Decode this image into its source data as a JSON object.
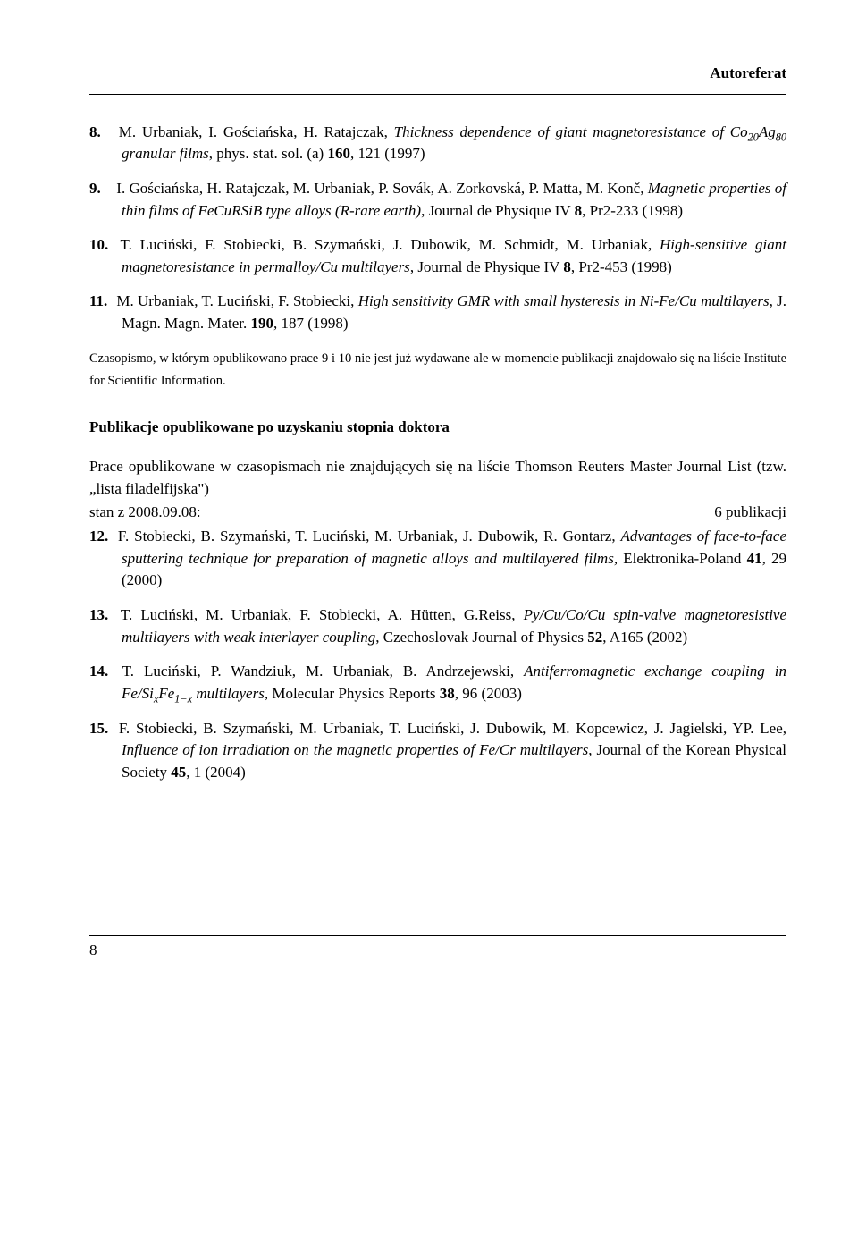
{
  "header": {
    "title": "Autoreferat"
  },
  "refs_a": [
    {
      "num": "8.",
      "html": "M. Urbaniak, I. Gościańska, H. Ratajczak, <span class='italic'>Thickness dependence of giant magnetoresistance of Co<sub>20</sub>Ag<sub>80</sub> granular films</span>, phys. stat. sol. (a) <span class='bold'>160</span>, 121 (1997)"
    },
    {
      "num": "9.",
      "html": "I. Gościańska, H. Ratajczak, M. Urbaniak, P. Sovák, A. Zorkovská, P. Matta, M. Konč, <span class='italic'>Magnetic properties of thin films of FeCuRSiB type alloys (R-rare earth)</span>, Journal de Physique IV <span class='bold'>8</span>, Pr2-233 (1998)"
    },
    {
      "num": "10.",
      "html": "T. Luciński, F. Stobiecki, B. Szymański, J. Dubowik, M. Schmidt, M. Urbaniak, <span class='italic'>High-sensitive giant magnetoresistance in permalloy/Cu multilayers</span>, Journal de Physique IV <span class='bold'>8</span>, Pr2-453 (1998)"
    },
    {
      "num": "11.",
      "html": "M. Urbaniak, T. Luciński, F. Stobiecki, <span class='italic'>High sensitivity GMR with small hysteresis in Ni-Fe/Cu multilayers</span>, J. Magn. Magn. Mater. <span class='bold'>190</span>, 187 (1998)"
    }
  ],
  "note": "Czasopismo, w którym opublikowano prace 9 i 10 nie jest już wydawane ale w momencie publikacji znajdowało się na liście Institute for Scientific Information.",
  "section_b_heading": "Publikacje opublikowane po uzyskaniu stopnia doktora",
  "section_b_intro_1": "Prace opublikowane w czasopismach nie znajdujących się na liście Thomson Reuters Master Journal List (tzw. „lista filadelfijska\")",
  "section_b_intro_2_left": "stan z 2008.09.08:",
  "section_b_intro_2_right": "6 publikacji",
  "refs_b": [
    {
      "num": "12.",
      "html": "F. Stobiecki, B. Szymański, T. Luciński, M. Urbaniak, J. Dubowik, R. Gontarz, <span class='italic'>Advantages of face-to-face sputtering technique for preparation of magnetic alloys and multilayered films</span>, Elektronika-Poland <span class='bold'>41</span>, 29 (2000)"
    },
    {
      "num": "13.",
      "html": "T. Luciński, M. Urbaniak, F. Stobiecki, A. Hütten, G.Reiss, <span class='italic'>Py/Cu/Co/Cu spin-valve magnetoresistive multilayers with weak interlayer coupling</span>, Czechoslovak Journal of Physics <span class='bold'>52</span>, A165 (2002)"
    },
    {
      "num": "14.",
      "html": "T. Luciński, P. Wandziuk, M. Urbaniak, B. Andrzejewski, <span class='italic'>Antiferromagnetic exchange coupling in Fe/Si<sub>x</sub>Fe<sub>1−x</sub> multilayers</span>, Molecular Physics Reports <span class='bold'>38</span>, 96 (2003)"
    },
    {
      "num": "15.",
      "html": "F. Stobiecki, B. Szymański, M. Urbaniak, T. Luciński, J. Dubowik, M. Kopcewicz, J. Jagielski, YP. Lee, <span class='italic'>Influence of ion irradiation on the magnetic properties of Fe/Cr multilayers</span>, Journal of the Korean Physical Society <span class='bold'>45</span>, 1 (2004)"
    }
  ],
  "page_number": "8"
}
